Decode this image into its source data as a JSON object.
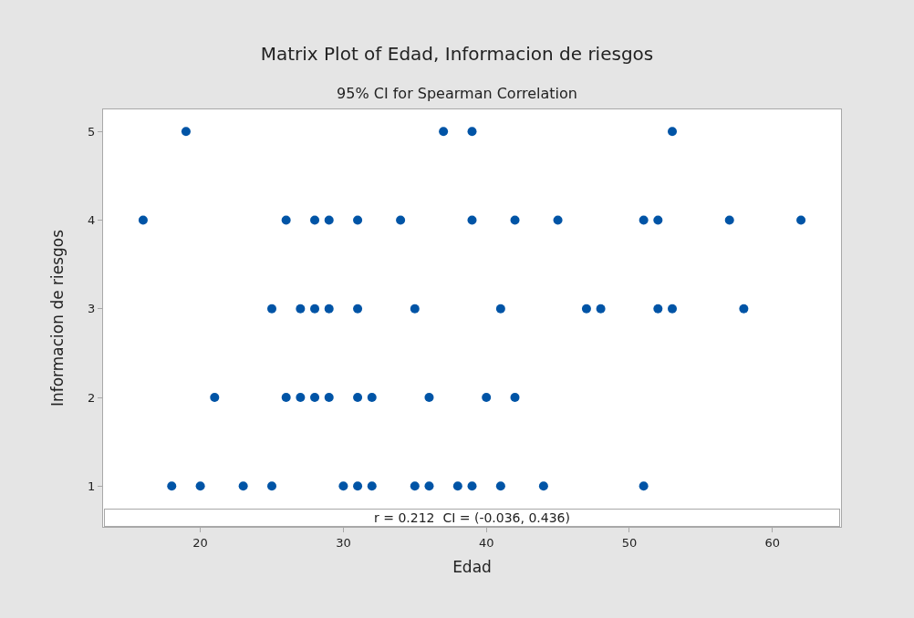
{
  "chart_data": {
    "type": "scatter",
    "title": "Matrix Plot of Edad, Informacion de riesgos",
    "subtitle": "95% CI for Spearman Correlation",
    "xlabel": "Edad",
    "ylabel": "Informacion de riesgos",
    "annotations": [
      "r = 0.212  CI = (-0.036, 0.436)"
    ],
    "x": [
      19,
      37,
      39,
      53,
      16,
      26,
      28,
      29,
      31,
      34,
      39,
      42,
      45,
      51,
      52,
      57,
      62,
      25,
      27,
      28,
      29,
      31,
      35,
      41,
      47,
      48,
      52,
      53,
      58,
      21,
      26,
      27,
      28,
      29,
      31,
      32,
      36,
      40,
      42,
      18,
      20,
      23,
      25,
      30,
      31,
      32,
      35,
      36,
      38,
      39,
      41,
      44,
      51
    ],
    "series": [
      {
        "color": "#0054a6",
        "values": [
          5,
          5,
          5,
          5,
          4,
          4,
          4,
          4,
          4,
          4,
          4,
          4,
          4,
          4,
          4,
          4,
          4,
          3,
          3,
          3,
          3,
          3,
          3,
          3,
          3,
          3,
          3,
          3,
          3,
          2,
          2,
          2,
          2,
          2,
          2,
          2,
          2,
          2,
          2,
          1,
          1,
          1,
          1,
          1,
          1,
          1,
          1,
          1,
          1,
          1,
          1,
          1,
          1
        ]
      }
    ],
    "xlim": [
      13.2,
      64.8
    ],
    "ylim": [
      0.54,
      5.25
    ],
    "xticks": [
      20,
      30,
      40,
      50,
      60
    ],
    "yticks": [
      1,
      2,
      3,
      4,
      5
    ],
    "marker": "circle"
  }
}
